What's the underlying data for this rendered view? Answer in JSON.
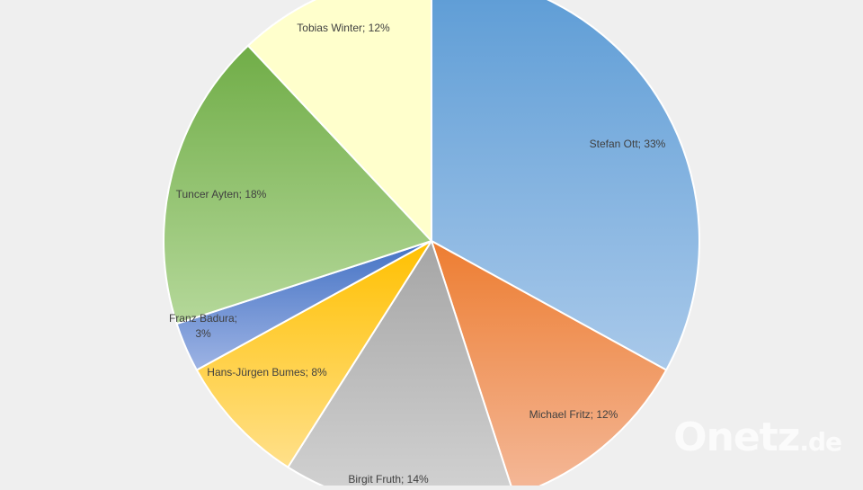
{
  "chart_data": {
    "type": "pie",
    "title": "",
    "start_angle_deg": 0,
    "direction": "clockwise",
    "series": [
      {
        "label": "Stefan Ott; 33%",
        "name": "Stefan Ott",
        "value": 33,
        "color_top": "#5b9bd5",
        "color_bottom": "#a9c9ea"
      },
      {
        "label": "Michael Fritz; 12%",
        "name": "Michael Fritz",
        "value": 12,
        "color_top": "#ed7d31",
        "color_bottom": "#f4b99a"
      },
      {
        "label": "Birgit Fruth; 14%",
        "name": "Birgit Fruth",
        "value": 14,
        "color_top": "#a5a5a5",
        "color_bottom": "#d4d4d4"
      },
      {
        "label": "Hans-Jürgen Bumes; 8%",
        "name": "Hans-Jürgen Bumes",
        "value": 8,
        "color_top": "#ffc000",
        "color_bottom": "#ffe08a"
      },
      {
        "label": [
          "Franz Badura;",
          "3%"
        ],
        "name": "Franz Badura",
        "value": 3,
        "color_top": "#4472c4",
        "color_bottom": "#9db3e4"
      },
      {
        "label": "Tuncer Ayten; 18%",
        "name": "Tuncer Ayten",
        "value": 18,
        "color_top": "#70ad47",
        "color_bottom": "#b5d89a"
      },
      {
        "label": "Tobias Winter; 12%",
        "name": "Tobias Winter",
        "value": 12,
        "color_top": "#ffffcc",
        "color_bottom": "#ffffcc"
      }
    ]
  },
  "watermark": {
    "brand": "Onetz",
    "tld": ".de"
  }
}
